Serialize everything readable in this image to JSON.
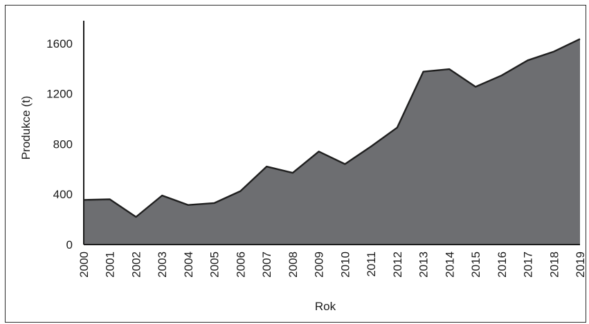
{
  "chart_data": {
    "type": "area",
    "xlabel": "Rok",
    "ylabel": "Produkce (t)",
    "title": "",
    "x": [
      "2000",
      "2001",
      "2002",
      "2003",
      "2004",
      "2005",
      "2006",
      "2007",
      "2008",
      "2009",
      "2010",
      "2011",
      "2012",
      "2013",
      "2014",
      "2015",
      "2016",
      "2017",
      "2018",
      "2019"
    ],
    "series": [
      {
        "values": [
          355,
          360,
          220,
          390,
          315,
          330,
          425,
          620,
          570,
          740,
          640,
          780,
          930,
          1375,
          1395,
          1255,
          1345,
          1465,
          1535,
          1635
        ]
      }
    ],
    "yticks": [
      0,
      400,
      800,
      1200,
      1600
    ],
    "ylim": [
      0,
      1780
    ],
    "grid": false,
    "colors": {
      "fill": "#6d6e71",
      "line": "#1f1f1f",
      "axis": "#1a1a1a"
    }
  }
}
